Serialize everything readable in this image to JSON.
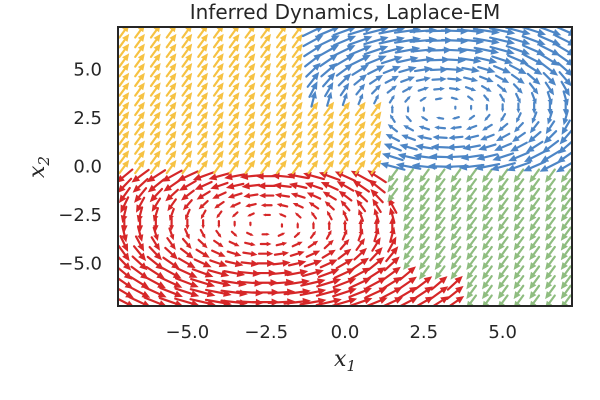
{
  "chart_data": {
    "type": "quiver",
    "title": "Inferred Dynamics, Laplace-EM",
    "xlabel": "x",
    "xlabel_sub": "1",
    "ylabel": "x",
    "ylabel_sub": "2",
    "xlim": [
      -7.2,
      7.2
    ],
    "ylim": [
      -7.2,
      7.2
    ],
    "xticks": [
      -5.0,
      -2.5,
      0.0,
      2.5,
      5.0
    ],
    "xtick_labels": [
      "−5.0",
      "−2.5",
      "0.0",
      "2.5",
      "5.0"
    ],
    "yticks": [
      -5.0,
      -2.5,
      0.0,
      2.5,
      5.0
    ],
    "ytick_labels": [
      "−5.0",
      "−2.5",
      "0.0",
      "2.5",
      "5.0"
    ],
    "grid": false,
    "legend": "none",
    "grid_range": [
      -7,
      7
    ],
    "grid_step": 0.5,
    "colors": {
      "red": "#d62728",
      "yellow": "#f6c243",
      "blue": "#4d86c6",
      "green": "#8fbd80"
    },
    "regions": [
      {
        "name": "red",
        "description": "lower-left state, clockwise rotation"
      },
      {
        "name": "yellow",
        "description": "upper-left state, flow up-right"
      },
      {
        "name": "blue",
        "description": "upper-right state, clockwise rotation"
      },
      {
        "name": "green",
        "description": "lower-right state, flow down-left"
      }
    ]
  }
}
